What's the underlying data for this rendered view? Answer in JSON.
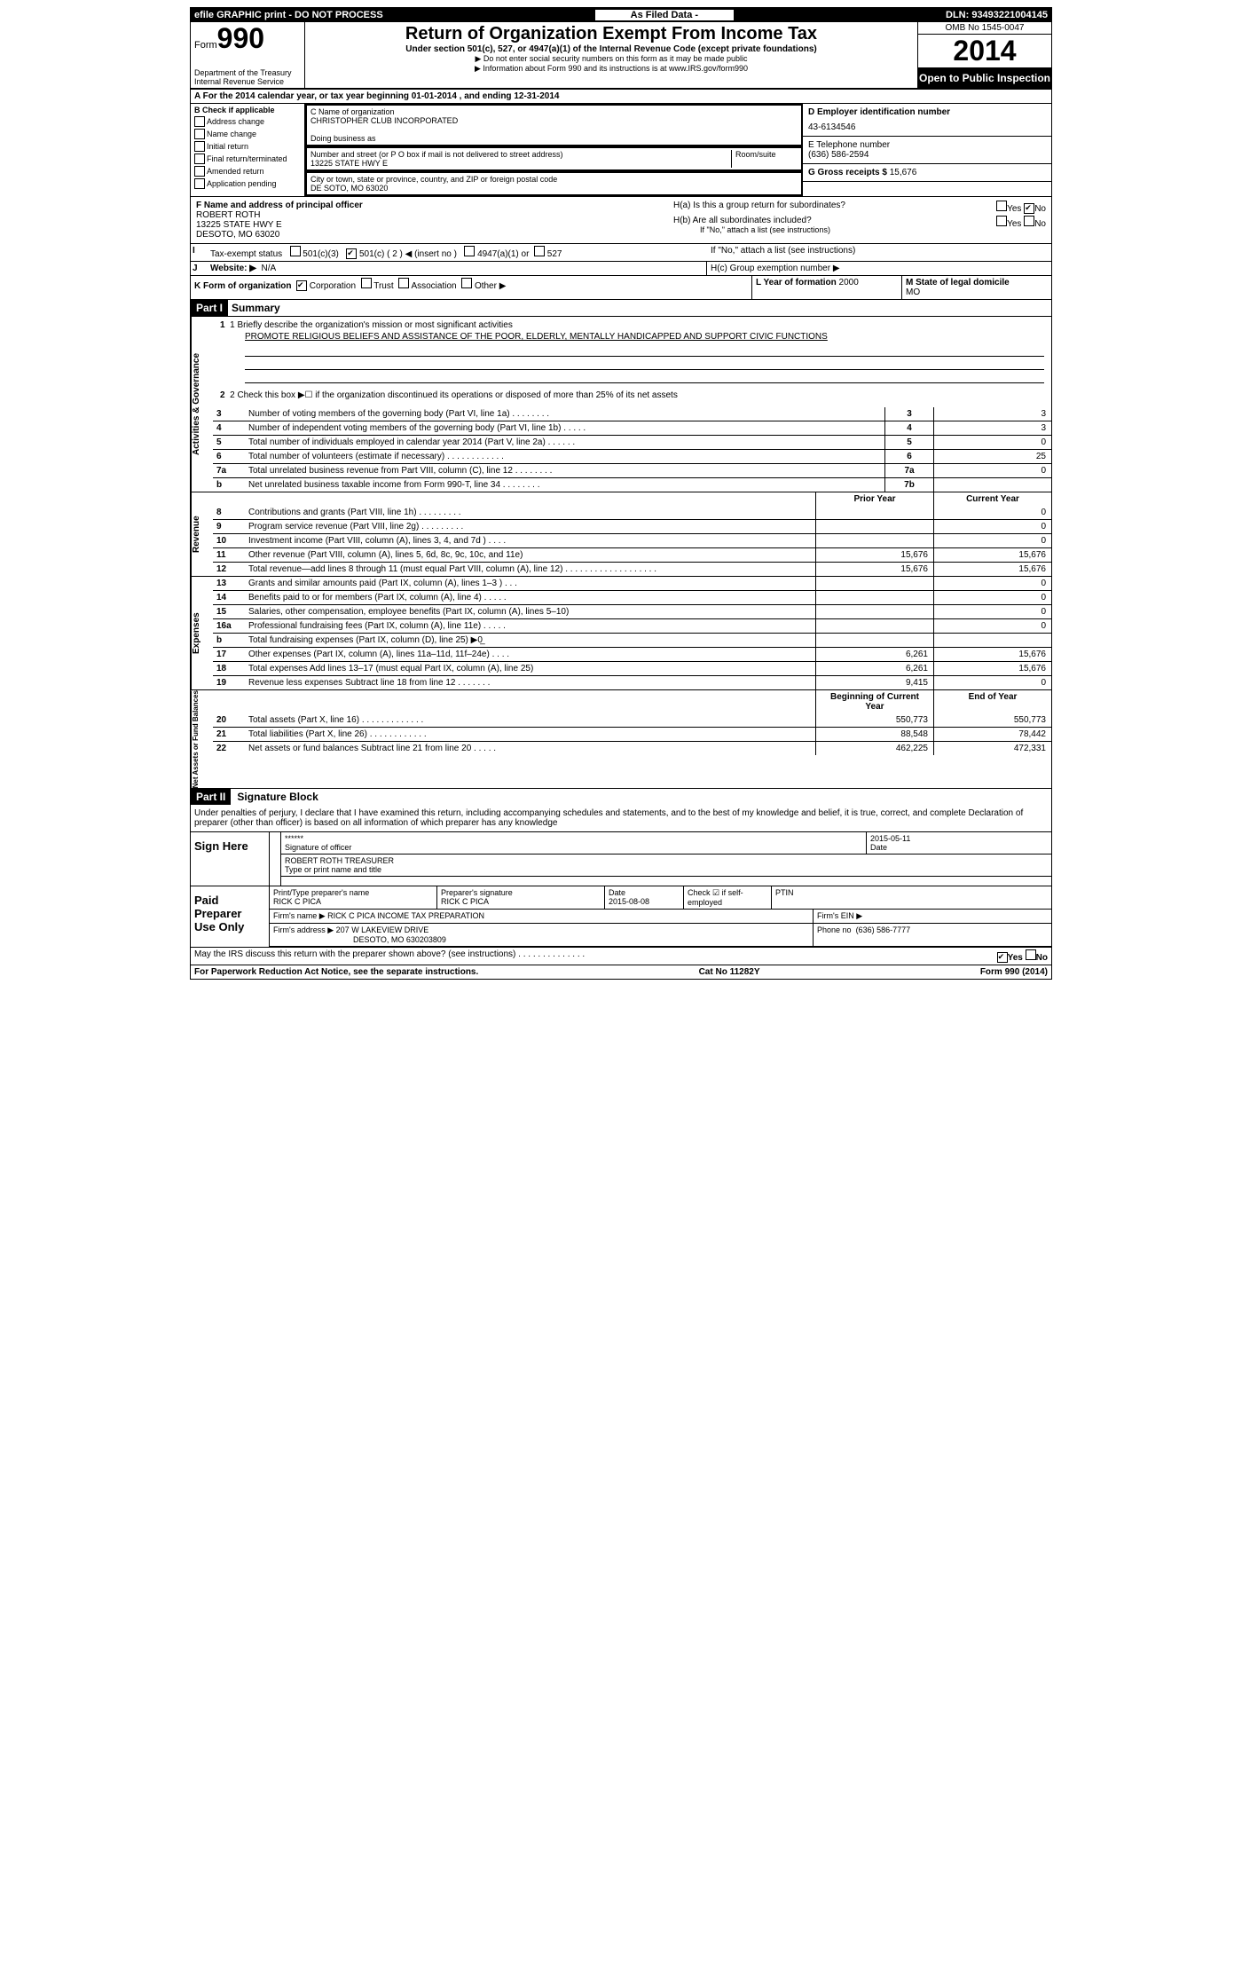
{
  "topbar": {
    "left": "efile GRAPHIC print - DO NOT PROCESS",
    "mid": "As Filed Data -",
    "right": "DLN: 93493221004145"
  },
  "header": {
    "form_label": "Form",
    "form_num": "990",
    "dept1": "Department of the Treasury",
    "dept2": "Internal Revenue Service",
    "title": "Return of Organization Exempt From Income Tax",
    "sub": "Under section 501(c), 527, or 4947(a)(1) of the Internal Revenue Code (except private foundations)",
    "note1": "▶ Do not enter social security numbers on this form as it may be made public",
    "note2": "▶ Information about Form 990 and its instructions is at www.IRS.gov/form990",
    "omb": "OMB No 1545-0047",
    "year": "2014",
    "inspect": "Open to Public Inspection"
  },
  "rowA": "A For the 2014 calendar year, or tax year beginning 01-01-2014    , and ending 12-31-2014",
  "colB": {
    "label": "B  Check if applicable",
    "items": [
      "Address change",
      "Name change",
      "Initial return",
      "Final return/terminated",
      "Amended return",
      "Application pending"
    ]
  },
  "colC": {
    "name_label": "C Name of organization",
    "name": "CHRISTOPHER CLUB INCORPORATED",
    "dba_label": "Doing business as",
    "addr_label": "Number and street (or P O  box if mail is not delivered to street address)",
    "room_label": "Room/suite",
    "addr": "13225 STATE HWY E",
    "city_label": "City or town, state or province, country, and ZIP or foreign postal code",
    "city": "DE SOTO, MO  63020"
  },
  "colD": {
    "ein_label": "D Employer identification number",
    "ein": "43-6134546",
    "phone_label": "E Telephone number",
    "phone": "(636) 586-2594",
    "gross_label": "G Gross receipts $",
    "gross": "15,676"
  },
  "officer": {
    "label": "F  Name and address of principal officer",
    "name": "ROBERT ROTH",
    "addr1": "13225 STATE HWY E",
    "addr2": "DESOTO, MO  63020",
    "ha": "H(a)  Is this a group return for subordinates?",
    "hb": "H(b)  Are all subordinates included?",
    "hb_note": "If \"No,\" attach a list  (see instructions)",
    "hc": "H(c)  Group exemption number ▶"
  },
  "rowI": {
    "label": "I",
    "text": "Tax-exempt status",
    "opts": [
      "501(c)(3)",
      "501(c) ( 2 ) ◀ (insert no )",
      "4947(a)(1) or",
      "527"
    ]
  },
  "rowJ": {
    "label": "J",
    "text": "Website: ▶",
    "val": "N/A"
  },
  "rowK": {
    "text": "K Form of organization",
    "opts": [
      "Corporation",
      "Trust",
      "Association",
      "Other ▶"
    ],
    "yof_label": "L Year of formation",
    "yof": "2000",
    "state_label": "M State of legal domicile",
    "state": "MO"
  },
  "part1": {
    "hdr": "Part I",
    "title": "Summary",
    "line1": "1   Briefly describe the organization's mission or most significant activities",
    "mission": "PROMOTE RELIGIOUS BELIEFS AND ASSISTANCE OF THE POOR, ELDERLY, MENTALLY HANDICAPPED AND SUPPORT CIVIC FUNCTIONS",
    "line2": "2   Check this box ▶☐ if the organization discontinued its operations or disposed of more than 25% of its net assets"
  },
  "governance": [
    {
      "n": "3",
      "d": "Number of voting members of the governing body (Part VI, line 1a)   .   .   .   .   .   .   .   .",
      "b": "3",
      "v": "3"
    },
    {
      "n": "4",
      "d": "Number of independent voting members of the governing body (Part VI, line 1b)   .   .   .   .   .",
      "b": "4",
      "v": "3"
    },
    {
      "n": "5",
      "d": "Total number of individuals employed in calendar year 2014 (Part V, line 2a)   .   .   .   .   .   .",
      "b": "5",
      "v": "0"
    },
    {
      "n": "6",
      "d": "Total number of volunteers (estimate if necessary)   .   .   .   .   .   .   .   .   .   .   .   .",
      "b": "6",
      "v": "25"
    },
    {
      "n": "7a",
      "d": "Total unrelated business revenue from Part VIII, column (C), line 12   .   .   .   .   .   .   .   .",
      "b": "7a",
      "v": "0"
    },
    {
      "n": "b",
      "d": "Net unrelated business taxable income from Form 990-T, line 34   .   .   .   .   .   .   .   .",
      "b": "7b",
      "v": ""
    }
  ],
  "revenue": {
    "hdr_prior": "Prior Year",
    "hdr_curr": "Current Year",
    "rows": [
      {
        "n": "8",
        "d": "Contributions and grants (Part VIII, line 1h)   .   .   .   .   .   .   .   .   .",
        "p": "",
        "c": "0"
      },
      {
        "n": "9",
        "d": "Program service revenue (Part VIII, line 2g)   .   .   .   .   .   .   .   .   .",
        "p": "",
        "c": "0"
      },
      {
        "n": "10",
        "d": "Investment income (Part VIII, column (A), lines 3, 4, and 7d )   .   .   .   .",
        "p": "",
        "c": "0"
      },
      {
        "n": "11",
        "d": "Other revenue (Part VIII, column (A), lines 5, 6d, 8c, 9c, 10c, and 11e)",
        "p": "15,676",
        "c": "15,676"
      },
      {
        "n": "12",
        "d": "Total revenue—add lines 8 through 11 (must equal Part VIII, column (A), line 12)   .   .   .   .   .   .   .   .   .   .   .   .   .   .   .   .   .   .   .",
        "p": "15,676",
        "c": "15,676"
      }
    ]
  },
  "expenses": {
    "rows": [
      {
        "n": "13",
        "d": "Grants and similar amounts paid (Part IX, column (A), lines 1–3 )   .   .   .",
        "p": "",
        "c": "0"
      },
      {
        "n": "14",
        "d": "Benefits paid to or for members (Part IX, column (A), line 4)   .   .   .   .   .",
        "p": "",
        "c": "0"
      },
      {
        "n": "15",
        "d": "Salaries, other compensation, employee benefits (Part IX, column (A), lines 5–10)",
        "p": "",
        "c": "0"
      },
      {
        "n": "16a",
        "d": "Professional fundraising fees (Part IX, column (A), line 11e)   .   .   .   .   .",
        "p": "",
        "c": "0"
      },
      {
        "n": "b",
        "d": "Total fundraising expenses (Part IX, column (D), line 25)  ▶0̲",
        "p": "",
        "c": ""
      },
      {
        "n": "17",
        "d": "Other expenses (Part IX, column (A), lines 11a–11d, 11f–24e)   .   .   .   .",
        "p": "6,261",
        "c": "15,676"
      },
      {
        "n": "18",
        "d": "Total expenses  Add lines 13–17 (must equal Part IX, column (A), line 25)",
        "p": "6,261",
        "c": "15,676"
      },
      {
        "n": "19",
        "d": "Revenue less expenses  Subtract line 18 from line 12   .   .   .   .   .   .   .",
        "p": "9,415",
        "c": "0"
      }
    ]
  },
  "netassets": {
    "hdr_prior": "Beginning of Current Year",
    "hdr_curr": "End of Year",
    "rows": [
      {
        "n": "20",
        "d": "Total assets (Part X, line 16)   .   .   .   .   .   .   .   .   .   .   .   .   .",
        "p": "550,773",
        "c": "550,773"
      },
      {
        "n": "21",
        "d": "Total liabilities (Part X, line 26)   .   .   .   .   .   .   .   .   .   .   .   .",
        "p": "88,548",
        "c": "78,442"
      },
      {
        "n": "22",
        "d": "Net assets or fund balances  Subtract line 21 from line 20   .   .   .   .   .",
        "p": "462,225",
        "c": "472,331"
      }
    ]
  },
  "part2": {
    "hdr": "Part II",
    "title": "Signature Block",
    "text": "Under penalties of perjury, I declare that I have examined this return, including accompanying schedules and statements, and to the best of my knowledge and belief, it is true, correct, and complete  Declaration of preparer (other than officer) is based on all information of which preparer has any knowledge"
  },
  "sign": {
    "left": "Sign Here",
    "stars": "******",
    "sig_label": "Signature of officer",
    "date": "2015-05-11",
    "date_label": "Date",
    "name": "ROBERT ROTH TREASURER",
    "name_label": "Type or print name and title"
  },
  "preparer": {
    "left": "Paid Preparer Use Only",
    "name_label": "Print/Type preparer's name",
    "name": "RICK C PICA",
    "sig_label": "Preparer's signature",
    "sig": "RICK C PICA",
    "date_label": "Date",
    "date": "2015-08-08",
    "check_label": "Check ☑ if self-employed",
    "ptin_label": "PTIN",
    "firm_name_label": "Firm's name    ▶",
    "firm_name": "RICK C PICA INCOME TAX PREPARATION",
    "firm_ein_label": "Firm's EIN ▶",
    "firm_addr_label": "Firm's address ▶",
    "firm_addr1": "207 W LAKEVIEW DRIVE",
    "firm_addr2": "DESOTO, MO  630203809",
    "phone_label": "Phone no",
    "phone": "(636) 586-7777"
  },
  "discuss": "May the IRS discuss this return with the preparer shown above? (see instructions)   .   .   .   .   .   .   .   .   .   .   .   .   .   .",
  "footer": {
    "left": "For Paperwork Reduction Act Notice, see the separate instructions.",
    "mid": "Cat No 11282Y",
    "right": "Form 990 (2014)"
  },
  "labels": {
    "yes": "Yes",
    "no": "No",
    "activities": "Activities & Governance",
    "revenue": "Revenue",
    "expenses": "Expenses",
    "netassets": "Net Assets or Fund Balances"
  }
}
